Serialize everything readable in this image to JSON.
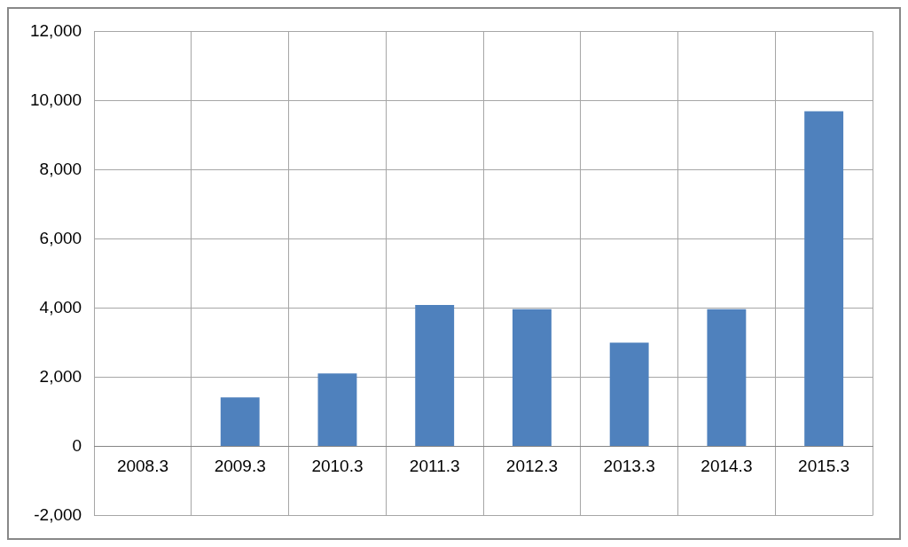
{
  "chart_data": {
    "type": "bar",
    "categories": [
      "2008.3",
      "2009.3",
      "2010.3",
      "2011.3",
      "2012.3",
      "2013.3",
      "2014.3",
      "2015.3"
    ],
    "values": [
      0,
      1420,
      2110,
      4090,
      3970,
      3000,
      3970,
      9690
    ],
    "color": "#4f81bd",
    "ylim": [
      -2000,
      12000
    ],
    "yticks": [
      {
        "value": -2000,
        "label": "-2,000"
      },
      0,
      {
        "value": 2000,
        "label": "2,000"
      },
      {
        "value": 4000,
        "label": "4,000"
      },
      {
        "value": 6000,
        "label": "6,000"
      },
      {
        "value": 8000,
        "label": "8,000"
      },
      {
        "value": 10000,
        "label": "10,000"
      },
      {
        "value": 12000,
        "label": "12,000"
      }
    ],
    "grid": true,
    "legend": false
  }
}
